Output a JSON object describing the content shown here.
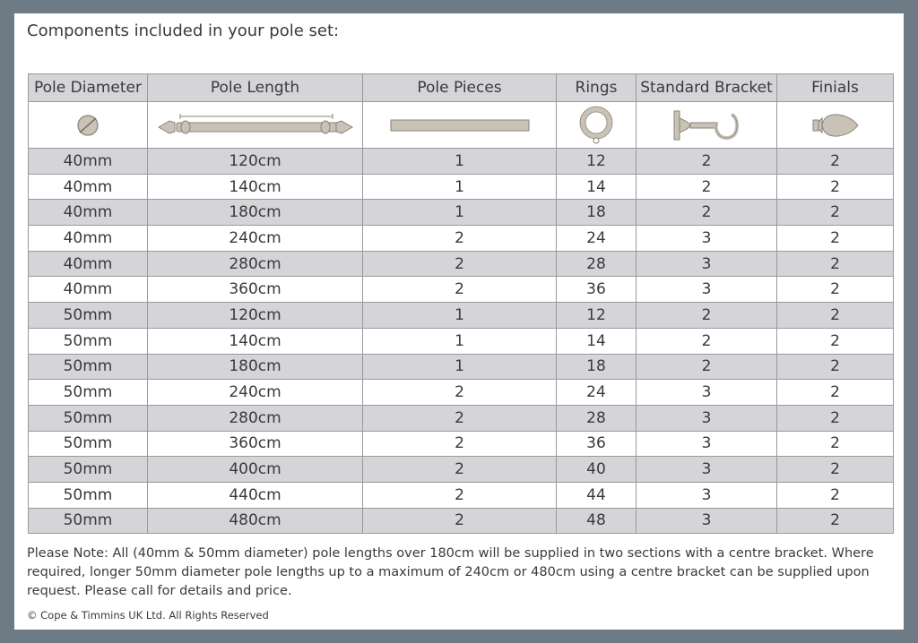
{
  "heading": "Components included in your pole set:",
  "columns": [
    "Pole Diameter",
    "Pole Length",
    "Pole Pieces",
    "Rings",
    "Standard Bracket",
    "Finials"
  ],
  "icons": [
    "pole-diameter-icon",
    "pole-length-icon",
    "pole-pieces-icon",
    "ring-icon",
    "bracket-icon",
    "finial-icon"
  ],
  "icon_color": "#c9c2b6",
  "rows": [
    [
      "40mm",
      "120cm",
      "1",
      "12",
      "2",
      "2"
    ],
    [
      "40mm",
      "140cm",
      "1",
      "14",
      "2",
      "2"
    ],
    [
      "40mm",
      "180cm",
      "1",
      "18",
      "2",
      "2"
    ],
    [
      "40mm",
      "240cm",
      "2",
      "24",
      "3",
      "2"
    ],
    [
      "40mm",
      "280cm",
      "2",
      "28",
      "3",
      "2"
    ],
    [
      "40mm",
      "360cm",
      "2",
      "36",
      "3",
      "2"
    ],
    [
      "50mm",
      "120cm",
      "1",
      "12",
      "2",
      "2"
    ],
    [
      "50mm",
      "140cm",
      "1",
      "14",
      "2",
      "2"
    ],
    [
      "50mm",
      "180cm",
      "1",
      "18",
      "2",
      "2"
    ],
    [
      "50mm",
      "240cm",
      "2",
      "24",
      "3",
      "2"
    ],
    [
      "50mm",
      "280cm",
      "2",
      "28",
      "3",
      "2"
    ],
    [
      "50mm",
      "360cm",
      "2",
      "36",
      "3",
      "2"
    ],
    [
      "50mm",
      "400cm",
      "2",
      "40",
      "3",
      "2"
    ],
    [
      "50mm",
      "440cm",
      "2",
      "44",
      "3",
      "2"
    ],
    [
      "50mm",
      "480cm",
      "2",
      "48",
      "3",
      "2"
    ]
  ],
  "note": "Please Note: All (40mm & 50mm diameter) pole lengths over 180cm will be supplied in two sections with a centre bracket. Where required, longer 50mm diameter pole lengths up to a maximum of 240cm or 480cm using a centre bracket can be supplied upon request. Please call for details and price.",
  "copyright": "© Cope & Timmins UK Ltd. All Rights Reserved"
}
